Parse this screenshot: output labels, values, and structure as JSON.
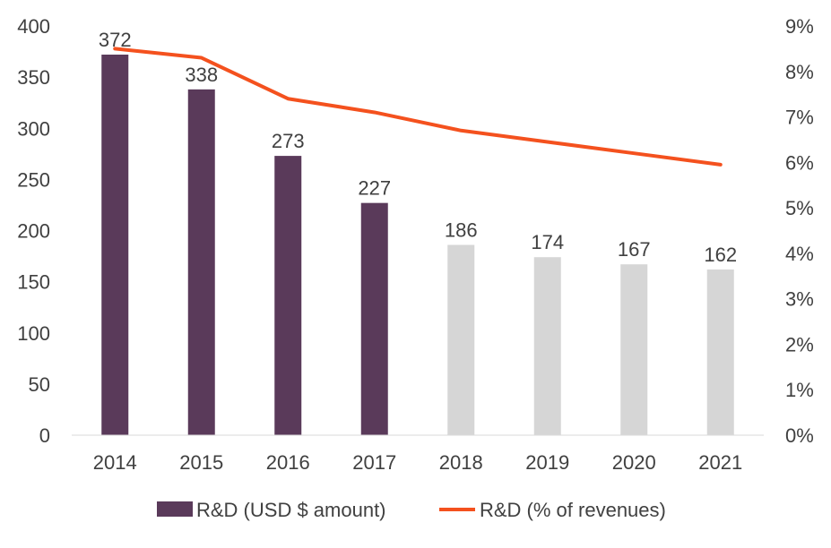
{
  "chart_data": {
    "type": "bar",
    "categories": [
      "2014",
      "2015",
      "2016",
      "2017",
      "2018",
      "2019",
      "2020",
      "2021"
    ],
    "series": [
      {
        "name": "R&D (USD $ amount)",
        "type": "bar",
        "axis": "left",
        "values": [
          372,
          338,
          273,
          227,
          186,
          174,
          167,
          162
        ],
        "colors": [
          "#5a3a5a",
          "#5a3a5a",
          "#5a3a5a",
          "#5a3a5a",
          "#d6d6d6",
          "#d6d6d6",
          "#d6d6d6",
          "#d6d6d6"
        ],
        "legend_color": "#5a3a5a",
        "data_labels": [
          "372",
          "338",
          "273",
          "227",
          "186",
          "174",
          "167",
          "162"
        ]
      },
      {
        "name": "R&D (% of revenues)",
        "type": "line",
        "axis": "right",
        "values": [
          8.5,
          8.3,
          7.4,
          7.1,
          6.7,
          6.45,
          6.2,
          5.95
        ],
        "color": "#f4511e"
      }
    ],
    "y_left": {
      "ticks": [
        0,
        50,
        100,
        150,
        200,
        250,
        300,
        350,
        400
      ],
      "tick_labels": [
        "0",
        "50",
        "100",
        "150",
        "200",
        "250",
        "300",
        "350",
        "400"
      ],
      "ylim": [
        0,
        400
      ]
    },
    "y_right": {
      "ticks": [
        0,
        1,
        2,
        3,
        4,
        5,
        6,
        7,
        8,
        9
      ],
      "tick_labels": [
        "0%",
        "1%",
        "2%",
        "3%",
        "4%",
        "5%",
        "6%",
        "7%",
        "8%",
        "9%"
      ],
      "ylim": [
        0,
        9
      ]
    },
    "title": "",
    "xlabel": "",
    "ylabel": "",
    "grid": false,
    "legend_position": "bottom",
    "axis_color": "#d9d9d9",
    "text_color": "#404040"
  }
}
